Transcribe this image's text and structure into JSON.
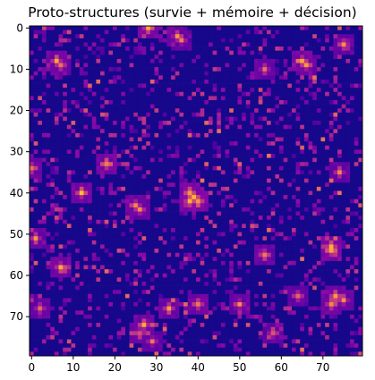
{
  "chart_data": {
    "type": "heatmap",
    "title": "Proto-structures (survie + mémoire + décision)",
    "xlabel": "",
    "ylabel": "",
    "colormap": "plasma",
    "grid": false,
    "legend": "none",
    "shape": [
      80,
      80
    ],
    "xlim": [
      0,
      79
    ],
    "ylim": [
      0,
      79
    ],
    "x_ticks": [
      "0",
      "10",
      "20",
      "30",
      "40",
      "50",
      "60",
      "70"
    ],
    "y_ticks": [
      "0",
      "10",
      "20",
      "30",
      "40",
      "50",
      "60",
      "70"
    ],
    "hotspots": [
      {
        "x": 28,
        "y": 0,
        "v": 0.9
      },
      {
        "x": 35,
        "y": 2,
        "v": 0.75
      },
      {
        "x": 36,
        "y": 3,
        "v": 0.7
      },
      {
        "x": 6,
        "y": 8,
        "v": 0.85
      },
      {
        "x": 7,
        "y": 9,
        "v": 0.8
      },
      {
        "x": 65,
        "y": 8,
        "v": 0.9
      },
      {
        "x": 66,
        "y": 9,
        "v": 0.8
      },
      {
        "x": 56,
        "y": 10,
        "v": 0.75
      },
      {
        "x": 75,
        "y": 4,
        "v": 0.75
      },
      {
        "x": 18,
        "y": 33,
        "v": 0.9
      },
      {
        "x": 0,
        "y": 34,
        "v": 0.8
      },
      {
        "x": 74,
        "y": 35,
        "v": 0.75
      },
      {
        "x": 12,
        "y": 40,
        "v": 0.9
      },
      {
        "x": 38,
        "y": 40,
        "v": 1.0
      },
      {
        "x": 39,
        "y": 41,
        "v": 1.0
      },
      {
        "x": 40,
        "y": 42,
        "v": 0.95
      },
      {
        "x": 38,
        "y": 42,
        "v": 0.9
      },
      {
        "x": 25,
        "y": 43,
        "v": 0.8
      },
      {
        "x": 26,
        "y": 44,
        "v": 0.75
      },
      {
        "x": 72,
        "y": 53,
        "v": 1.0
      },
      {
        "x": 72,
        "y": 54,
        "v": 0.95
      },
      {
        "x": 1,
        "y": 51,
        "v": 0.8
      },
      {
        "x": 7,
        "y": 58,
        "v": 0.85
      },
      {
        "x": 56,
        "y": 55,
        "v": 0.8
      },
      {
        "x": 40,
        "y": 67,
        "v": 0.85
      },
      {
        "x": 33,
        "y": 68,
        "v": 0.8
      },
      {
        "x": 72,
        "y": 67,
        "v": 0.9
      },
      {
        "x": 73,
        "y": 65,
        "v": 0.8
      },
      {
        "x": 75,
        "y": 66,
        "v": 0.75
      },
      {
        "x": 27,
        "y": 72,
        "v": 0.85
      },
      {
        "x": 26,
        "y": 74,
        "v": 0.75
      },
      {
        "x": 29,
        "y": 76,
        "v": 0.7
      },
      {
        "x": 2,
        "y": 68,
        "v": 0.75
      },
      {
        "x": 64,
        "y": 65,
        "v": 0.7
      },
      {
        "x": 58,
        "y": 74,
        "v": 0.7
      },
      {
        "x": 50,
        "y": 67,
        "v": 0.75
      }
    ]
  }
}
